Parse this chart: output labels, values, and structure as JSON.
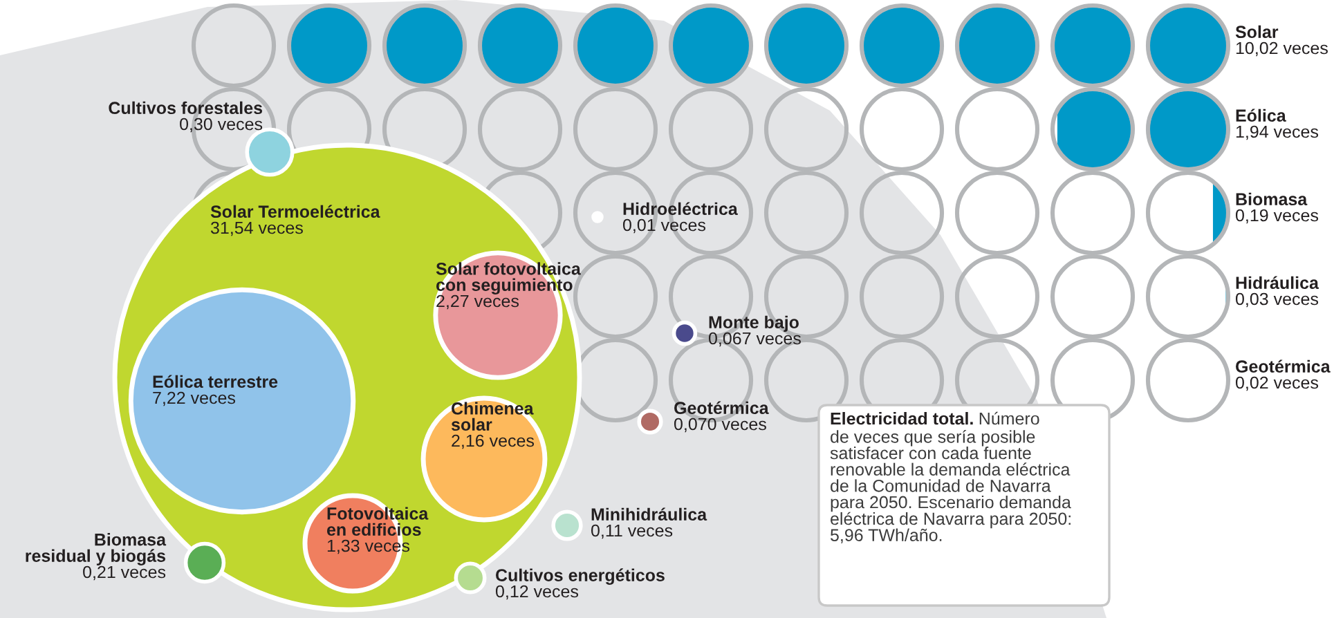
{
  "chart_data": [
    {
      "type": "other",
      "categories": [
        "Solar Termoeléctrica",
        "Eólica terrestre",
        "Solar fotovoltaica\ncon seguimiento",
        "Chimenea\nsolar",
        "Fotovoltaica\nen edificios",
        "Cultivos forestales",
        "Biomasa\nresidual y biogás",
        "Cultivos energéticos",
        "Minihidráulica",
        "Geotérmica",
        "Monte bajo",
        "Hidroeléctrica"
      ],
      "values": [
        31.54,
        7.22,
        2.27,
        2.16,
        1.33,
        0.3,
        0.21,
        0.12,
        0.11,
        0.07,
        0.067,
        0.01
      ],
      "value_labels": [
        "31,54 veces",
        "7,22 veces",
        "2,27 veces",
        "2,16 veces",
        "1,33 veces",
        "0,30 veces",
        "0,21 veces",
        "0,12 veces",
        "0,11 veces",
        "0,070 veces",
        "0,067 veces",
        "0,01 veces"
      ],
      "colors": [
        "#c0d72f",
        "#90c3ea",
        "#e8979a",
        "#fdb95c",
        "#f07f5f",
        "#8ed3df",
        "#5aae55",
        "#b5dc90",
        "#b9e2cf",
        "#b06a64",
        "#4a4a8c",
        "#ffffff"
      ],
      "annotations": [
        "Electricidad total.",
        "Número\nde veces que sería posible\nsatisfacer con cada fuente\nrenovable la demanda eléctrica\nde la Comunidad de Navarra\npara 2050. Escenario demanda\neléctrica de Navarra para 2050:\n5,96 TWh/año."
      ]
    },
    {
      "type": "other",
      "categories": [
        "Solar",
        "Eólica",
        "Biomasa",
        "Hidráulica",
        "Geotérmica"
      ],
      "values": [
        10.02,
        1.94,
        0.19,
        0.03,
        0.02
      ],
      "value_labels": [
        "10,02 veces",
        "1,94 veces",
        "0,19 veces",
        "0,03 veces",
        "0,02 veces"
      ],
      "color": "#0099c8"
    }
  ]
}
